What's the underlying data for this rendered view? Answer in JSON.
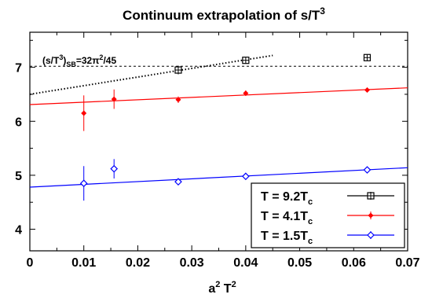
{
  "chart_data": {
    "type": "scatter",
    "title": "Continuum extrapolation of s/T",
    "title_sup": "3",
    "xlabel": "a",
    "xlabel_sup1": "2",
    "xlabel_mid": " T",
    "xlabel_sup2": "2",
    "ylabel": "",
    "xlim": [
      0,
      0.07
    ],
    "ylim": [
      3.6,
      7.65
    ],
    "x_ticks": [
      0,
      0.01,
      0.02,
      0.03,
      0.04,
      0.05,
      0.06,
      0.07
    ],
    "x_tick_labels": [
      "0",
      "0.01",
      "0.02",
      "0.03",
      "0.04",
      "0.05",
      "0.06",
      "0.07"
    ],
    "y_ticks": [
      4,
      5,
      6,
      7
    ],
    "y_tick_labels": [
      "4",
      "5",
      "6",
      "7"
    ],
    "grid": false,
    "legend_position": "bottom-right",
    "annotation": {
      "parts": [
        "(s/T",
        "3",
        ")",
        "SB",
        "=32π",
        "2",
        "/45"
      ],
      "note": "Stefan-Boltzmann limit, horizontal dashed line"
    },
    "sb_limit": 7.02,
    "series": [
      {
        "name": "T = 9.2T",
        "name_sub": "c",
        "color": "#000000",
        "marker": "square-plus",
        "points": [
          {
            "x": 0.0275,
            "y": 6.95,
            "err": 0.08
          },
          {
            "x": 0.04,
            "y": 7.13,
            "err": 0.05
          },
          {
            "x": 0.0625,
            "y": 7.18,
            "err": 0.05
          }
        ],
        "fit": {
          "x": [
            0,
            0.045
          ],
          "y": [
            6.5,
            7.22
          ],
          "style": "dotted"
        }
      },
      {
        "name": "T = 4.1T",
        "name_sub": "c",
        "color": "#ff0000",
        "marker": "diamond-filled",
        "points": [
          {
            "x": 0.01,
            "y": 6.15,
            "err": 0.33
          },
          {
            "x": 0.0156,
            "y": 6.41,
            "err": 0.18
          },
          {
            "x": 0.0275,
            "y": 6.4,
            "err": 0.06
          },
          {
            "x": 0.04,
            "y": 6.52,
            "err": 0.05
          },
          {
            "x": 0.0625,
            "y": 6.58,
            "err": 0.03
          }
        ],
        "fit": {
          "x": [
            0,
            0.07
          ],
          "y": [
            6.31,
            6.62
          ],
          "style": "solid"
        }
      },
      {
        "name": "T = 1.5T",
        "name_sub": "c",
        "color": "#0000ff",
        "marker": "diamond-open",
        "points": [
          {
            "x": 0.01,
            "y": 4.85,
            "err": 0.32
          },
          {
            "x": 0.0156,
            "y": 5.12,
            "err": 0.18
          },
          {
            "x": 0.0275,
            "y": 4.88,
            "err": 0.04
          },
          {
            "x": 0.04,
            "y": 4.98,
            "err": 0.03
          },
          {
            "x": 0.0625,
            "y": 5.1,
            "err": 0.03
          }
        ],
        "fit": {
          "x": [
            0,
            0.07
          ],
          "y": [
            4.78,
            5.14
          ],
          "style": "solid"
        }
      }
    ]
  }
}
